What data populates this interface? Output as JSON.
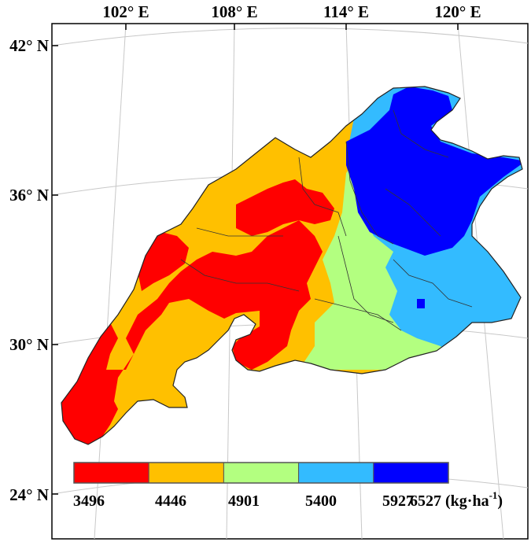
{
  "map": {
    "longitude_labels": [
      "102° E",
      "108° E",
      "114° E",
      "120° E"
    ],
    "latitude_labels": [
      "42° N",
      "36° N",
      "30° N",
      "24° N"
    ]
  },
  "legend": {
    "breaks": [
      "3496",
      "4446",
      "4901",
      "5400",
      "5927",
      "6527"
    ],
    "unit_prefix": "(kg·ha",
    "unit_superscript": "-1",
    "unit_suffix": ")",
    "classes": [
      {
        "from": 3496,
        "to": 4446,
        "color": "#ff0000"
      },
      {
        "from": 4446,
        "to": 4901,
        "color": "#ffc000"
      },
      {
        "from": 4901,
        "to": 5400,
        "color": "#b3ff80"
      },
      {
        "from": 5400,
        "to": 5927,
        "color": "#33bbff"
      },
      {
        "from": 5927,
        "to": 6527,
        "color": "#0000ff"
      }
    ]
  }
}
